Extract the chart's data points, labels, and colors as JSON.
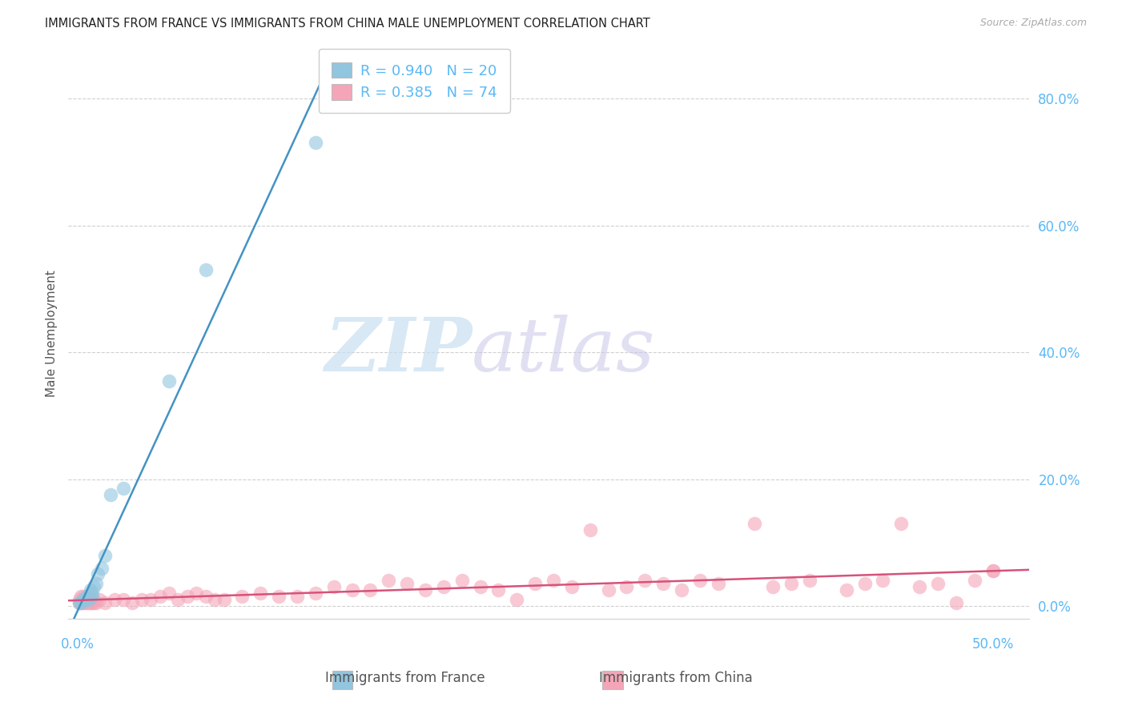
{
  "title": "IMMIGRANTS FROM FRANCE VS IMMIGRANTS FROM CHINA MALE UNEMPLOYMENT CORRELATION CHART",
  "source": "Source: ZipAtlas.com",
  "ylabel": "Male Unemployment",
  "xlim": [
    -0.005,
    0.52
  ],
  "ylim": [
    -0.02,
    0.88
  ],
  "france_R": 0.94,
  "france_N": 20,
  "china_R": 0.385,
  "china_N": 74,
  "france_color": "#92c5de",
  "france_edge_color": "#92c5de",
  "china_color": "#f4a6b8",
  "china_edge_color": "#f4a6b8",
  "france_line_color": "#4393c3",
  "china_line_color": "#d6527a",
  "legend_france_label": "Immigrants from France",
  "legend_china_label": "Immigrants from China",
  "watermark_zip": "ZIP",
  "watermark_atlas": "atlas",
  "ytick_vals": [
    0.0,
    0.2,
    0.4,
    0.6,
    0.8
  ],
  "ytick_labels": [
    "0.0%",
    "20.0%",
    "40.0%",
    "60.0%",
    "80.0%"
  ],
  "xtick_vals": [
    0.0,
    0.1,
    0.2,
    0.3,
    0.4,
    0.5
  ],
  "france_x": [
    0.001,
    0.002,
    0.003,
    0.004,
    0.005,
    0.006,
    0.007,
    0.007,
    0.008,
    0.008,
    0.009,
    0.01,
    0.011,
    0.013,
    0.015,
    0.018,
    0.025,
    0.05,
    0.07,
    0.13
  ],
  "france_y": [
    0.005,
    0.005,
    0.01,
    0.01,
    0.015,
    0.01,
    0.02,
    0.025,
    0.015,
    0.02,
    0.03,
    0.035,
    0.05,
    0.06,
    0.08,
    0.175,
    0.185,
    0.355,
    0.53,
    0.73
  ],
  "china_x": [
    0.001,
    0.001,
    0.002,
    0.002,
    0.003,
    0.003,
    0.003,
    0.004,
    0.004,
    0.005,
    0.005,
    0.006,
    0.006,
    0.007,
    0.007,
    0.008,
    0.009,
    0.01,
    0.012,
    0.015,
    0.02,
    0.025,
    0.03,
    0.035,
    0.04,
    0.045,
    0.05,
    0.055,
    0.06,
    0.065,
    0.07,
    0.075,
    0.08,
    0.09,
    0.1,
    0.11,
    0.12,
    0.13,
    0.14,
    0.15,
    0.16,
    0.17,
    0.18,
    0.19,
    0.2,
    0.21,
    0.22,
    0.23,
    0.24,
    0.25,
    0.26,
    0.27,
    0.28,
    0.29,
    0.3,
    0.31,
    0.32,
    0.33,
    0.34,
    0.35,
    0.37,
    0.38,
    0.39,
    0.4,
    0.42,
    0.43,
    0.44,
    0.45,
    0.46,
    0.47,
    0.48,
    0.49,
    0.5,
    0.5
  ],
  "china_y": [
    0.005,
    0.01,
    0.005,
    0.015,
    0.005,
    0.01,
    0.015,
    0.005,
    0.01,
    0.005,
    0.015,
    0.005,
    0.01,
    0.005,
    0.01,
    0.005,
    0.005,
    0.005,
    0.01,
    0.005,
    0.01,
    0.01,
    0.005,
    0.01,
    0.01,
    0.015,
    0.02,
    0.01,
    0.015,
    0.02,
    0.015,
    0.01,
    0.01,
    0.015,
    0.02,
    0.015,
    0.015,
    0.02,
    0.03,
    0.025,
    0.025,
    0.04,
    0.035,
    0.025,
    0.03,
    0.04,
    0.03,
    0.025,
    0.01,
    0.035,
    0.04,
    0.03,
    0.12,
    0.025,
    0.03,
    0.04,
    0.035,
    0.025,
    0.04,
    0.035,
    0.13,
    0.03,
    0.035,
    0.04,
    0.025,
    0.035,
    0.04,
    0.13,
    0.03,
    0.035,
    0.005,
    0.04,
    0.055,
    0.055
  ]
}
